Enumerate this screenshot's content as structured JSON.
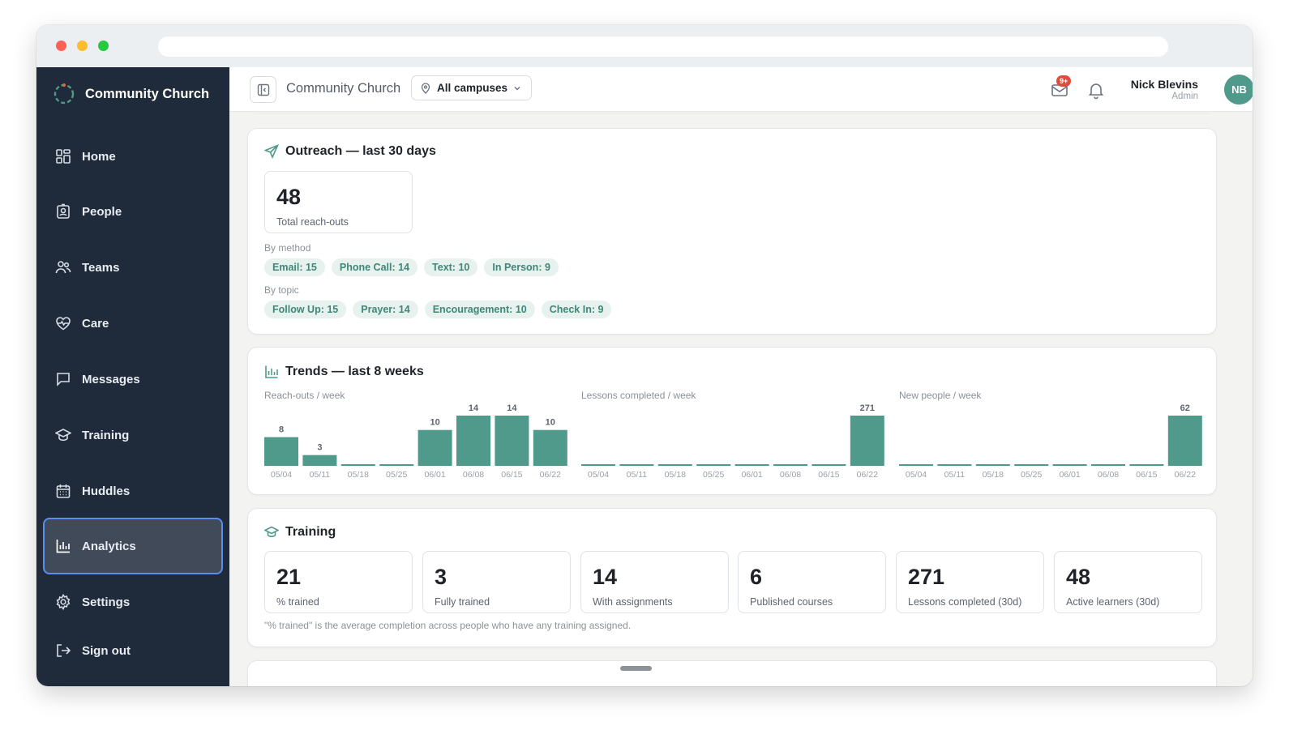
{
  "sidebar": {
    "brand": "Community Church",
    "items": [
      {
        "label": "Home",
        "icon": "grid-icon"
      },
      {
        "label": "People",
        "icon": "id-badge-icon"
      },
      {
        "label": "Teams",
        "icon": "users-icon"
      },
      {
        "label": "Care",
        "icon": "heart-pulse-icon"
      },
      {
        "label": "Messages",
        "icon": "message-icon"
      },
      {
        "label": "Training",
        "icon": "graduation-cap-icon"
      },
      {
        "label": "Huddles",
        "icon": "calendar-icon"
      },
      {
        "label": "Analytics",
        "icon": "bar-chart-icon",
        "active": true
      },
      {
        "label": "Settings",
        "icon": "gear-icon"
      },
      {
        "label": "Sign out",
        "icon": "sign-out-icon"
      }
    ]
  },
  "topbar": {
    "title": "Community Church",
    "campus": "All campuses",
    "notification_badge": "9+",
    "user_name": "Nick Blevins",
    "user_role": "Admin",
    "user_initials": "NB"
  },
  "outreach": {
    "title": "Outreach — last 30 days",
    "total_value": "48",
    "total_label": "Total reach-outs",
    "by_method_label": "By method",
    "by_method": [
      "Email: 15",
      "Phone Call: 14",
      "Text: 10",
      "In Person: 9"
    ],
    "by_topic_label": "By topic",
    "by_topic": [
      "Follow Up: 15",
      "Prayer: 14",
      "Encouragement: 10",
      "Check In: 9"
    ]
  },
  "trends": {
    "title": "Trends — last 8 weeks"
  },
  "chart_data": [
    {
      "type": "bar",
      "title": "Reach-outs / week",
      "categories": [
        "05/04",
        "05/11",
        "05/18",
        "05/25",
        "06/01",
        "06/08",
        "06/15",
        "06/22"
      ],
      "values": [
        8,
        3,
        0,
        0,
        10,
        14,
        14,
        10
      ],
      "labels": [
        "8",
        "3",
        "",
        "",
        "10",
        "14",
        "14",
        "10"
      ]
    },
    {
      "type": "bar",
      "title": "Lessons completed / week",
      "categories": [
        "05/04",
        "05/11",
        "05/18",
        "05/25",
        "06/01",
        "06/08",
        "06/15",
        "06/22"
      ],
      "values": [
        0,
        0,
        0,
        0,
        0,
        0,
        0,
        271
      ],
      "labels": [
        "",
        "",
        "",
        "",
        "",
        "",
        "",
        "271"
      ]
    },
    {
      "type": "bar",
      "title": "New people / week",
      "categories": [
        "05/04",
        "05/11",
        "05/18",
        "05/25",
        "06/01",
        "06/08",
        "06/15",
        "06/22"
      ],
      "values": [
        0,
        0,
        0,
        0,
        0,
        0,
        0,
        62
      ],
      "labels": [
        "",
        "",
        "",
        "",
        "",
        "",
        "",
        "62"
      ]
    }
  ],
  "training": {
    "title": "Training",
    "stats": [
      {
        "value": "21",
        "label": "% trained"
      },
      {
        "value": "3",
        "label": "Fully trained"
      },
      {
        "value": "14",
        "label": "With assignments"
      },
      {
        "value": "6",
        "label": "Published courses"
      },
      {
        "value": "271",
        "label": "Lessons completed (30d)"
      },
      {
        "value": "48",
        "label": "Active learners (30d)"
      }
    ],
    "footnote": "\"% trained\" is the average completion across people who have any training assigned."
  },
  "colors": {
    "accent": "#4f9a8b",
    "sidebar": "#1f2a3a",
    "chip_bg": "#e7f1ee",
    "chip_text": "#3f8778"
  }
}
